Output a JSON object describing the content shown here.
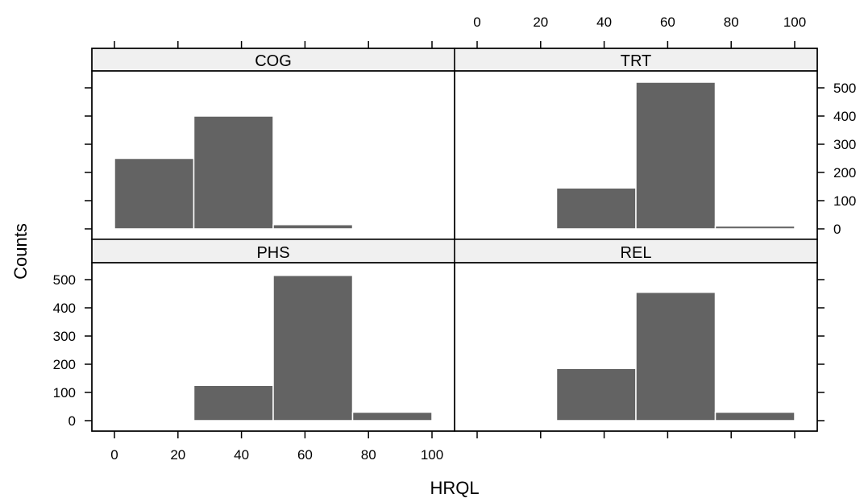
{
  "chart_data": {
    "type": "bar",
    "xlabel": "HRQL",
    "ylabel": "Counts",
    "xlim": [
      0,
      100
    ],
    "ylim": [
      0,
      550
    ],
    "x_ticks": [
      0,
      20,
      40,
      60,
      80,
      100
    ],
    "y_ticks": [
      0,
      100,
      200,
      300,
      400,
      500
    ],
    "bin_width": 25,
    "grid": false,
    "colors": {
      "bar": "#636363",
      "strip": "#f0f0f0",
      "frame": "#000000"
    },
    "panels": [
      {
        "name": "COG",
        "bins": [
          0,
          25,
          50
        ],
        "values": [
          250,
          400,
          15
        ]
      },
      {
        "name": "TRT",
        "bins": [
          25,
          50,
          75
        ],
        "values": [
          145,
          520,
          10
        ]
      },
      {
        "name": "PHS",
        "bins": [
          25,
          50,
          75
        ],
        "values": [
          125,
          515,
          30
        ]
      },
      {
        "name": "REL",
        "bins": [
          25,
          50,
          75
        ],
        "values": [
          185,
          455,
          30
        ]
      }
    ]
  }
}
